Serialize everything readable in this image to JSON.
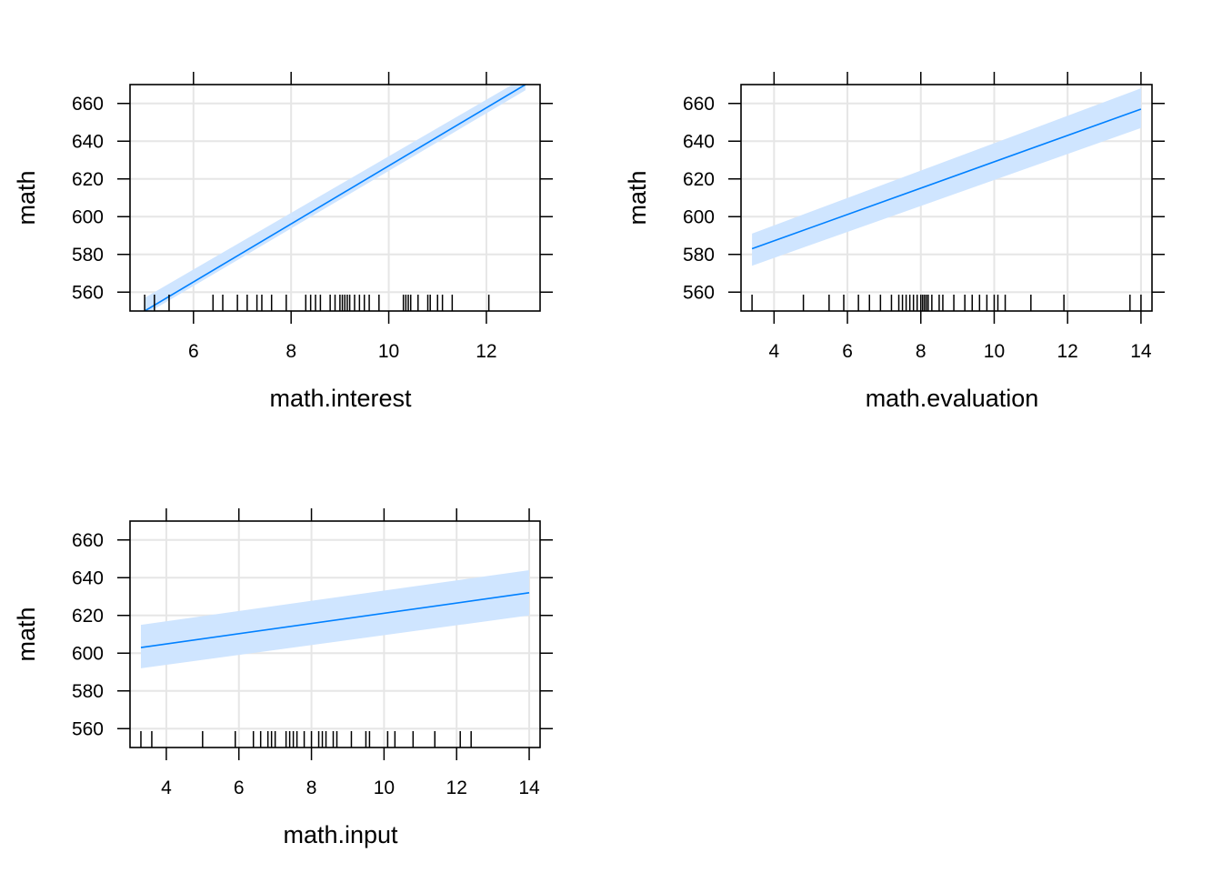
{
  "colors": {
    "line": "#0080ff",
    "band": "#cfe5ff",
    "grid": "#e6e6e6",
    "frame": "#000000",
    "rug": "#000000"
  },
  "chart_data": [
    {
      "type": "line",
      "panel": "top-left",
      "xlabel": "math.interest",
      "ylabel": "math",
      "xlim": [
        4.7,
        13.1
      ],
      "ylim": [
        550,
        670
      ],
      "xticks": [
        6,
        8,
        10,
        12
      ],
      "yticks": [
        560,
        580,
        600,
        620,
        640,
        660
      ],
      "grid": true,
      "series": [
        {
          "x": [
            5.0,
            12.8
          ],
          "y": [
            550,
            670
          ],
          "band_lower": [
            548,
            667
          ],
          "band_upper": [
            557,
            674
          ]
        }
      ],
      "rug": [
        5.0,
        5.2,
        5.5,
        6.4,
        6.6,
        6.9,
        7.1,
        7.3,
        7.4,
        7.6,
        7.9,
        8.3,
        8.4,
        8.5,
        8.6,
        8.8,
        8.9,
        9.0,
        9.05,
        9.1,
        9.15,
        9.2,
        9.3,
        9.4,
        9.5,
        9.6,
        9.8,
        10.3,
        10.35,
        10.4,
        10.45,
        10.6,
        10.8,
        10.85,
        11.0,
        11.1,
        11.3,
        12.05
      ]
    },
    {
      "type": "line",
      "panel": "top-right",
      "xlabel": "math.evaluation",
      "ylabel": "math",
      "xlim": [
        3.1,
        14.3
      ],
      "ylim": [
        550,
        670
      ],
      "xticks": [
        4,
        6,
        8,
        10,
        12,
        14
      ],
      "yticks": [
        560,
        580,
        600,
        620,
        640,
        660
      ],
      "grid": true,
      "series": [
        {
          "x": [
            3.4,
            14.0
          ],
          "y": [
            583,
            657
          ],
          "band_lower": [
            574,
            647
          ],
          "band_upper": [
            591,
            668
          ]
        }
      ],
      "rug": [
        3.4,
        4.8,
        5.5,
        5.9,
        6.3,
        6.6,
        6.9,
        7.2,
        7.4,
        7.5,
        7.6,
        7.7,
        7.8,
        7.9,
        8.0,
        8.05,
        8.1,
        8.15,
        8.2,
        8.3,
        8.5,
        8.6,
        8.9,
        9.2,
        9.4,
        9.6,
        9.8,
        10.0,
        10.1,
        10.3,
        11.0,
        11.9,
        13.7,
        14.0
      ]
    },
    {
      "type": "line",
      "panel": "bottom-left",
      "xlabel": "math.input",
      "ylabel": "math",
      "xlim": [
        3.0,
        14.3
      ],
      "ylim": [
        550,
        670
      ],
      "xticks": [
        4,
        6,
        8,
        10,
        12,
        14
      ],
      "yticks": [
        560,
        580,
        600,
        620,
        640,
        660
      ],
      "grid": true,
      "series": [
        {
          "x": [
            3.3,
            14.0
          ],
          "y": [
            603,
            632
          ],
          "band_lower": [
            592,
            620
          ],
          "band_upper": [
            615,
            644
          ]
        }
      ],
      "rug": [
        3.3,
        3.6,
        5.0,
        5.9,
        6.4,
        6.6,
        6.8,
        6.9,
        7.0,
        7.3,
        7.4,
        7.5,
        7.6,
        7.8,
        8.0,
        8.2,
        8.3,
        8.4,
        8.6,
        8.7,
        9.1,
        9.5,
        9.6,
        10.1,
        10.3,
        10.8,
        11.4,
        12.1,
        12.4
      ]
    }
  ]
}
